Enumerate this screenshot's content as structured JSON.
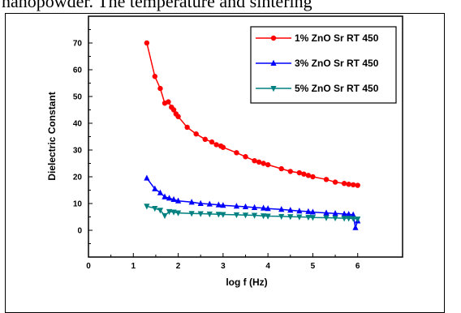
{
  "page": {
    "top_text": "nanopowder.  The    temperature and sintering"
  },
  "chart_data": {
    "type": "line",
    "xlabel": "log f (Hz)",
    "ylabel": "Dielectric Constant",
    "xlim": [
      0,
      7
    ],
    "ylim": [
      -10,
      80
    ],
    "xticks": [
      0,
      1,
      2,
      3,
      4,
      5,
      6
    ],
    "yticks": [
      0,
      10,
      20,
      30,
      40,
      50,
      60,
      70
    ],
    "legend_position": "top-right",
    "series": [
      {
        "name": "1% ZnO Sr  RT  450",
        "color": "#ff0000",
        "marker": "circle",
        "x": [
          1.3,
          1.48,
          1.6,
          1.7,
          1.78,
          1.85,
          1.9,
          1.95,
          2.0,
          2.2,
          2.4,
          2.6,
          2.75,
          2.85,
          2.95,
          3.0,
          3.3,
          3.5,
          3.7,
          3.8,
          3.9,
          4.0,
          4.3,
          4.5,
          4.7,
          4.8,
          4.9,
          5.0,
          5.3,
          5.5,
          5.7,
          5.8,
          5.9,
          6.0
        ],
        "y": [
          70,
          57.5,
          53,
          47.5,
          48,
          46,
          45,
          43.5,
          42.5,
          38.5,
          36,
          34,
          33,
          32,
          31.5,
          31,
          29,
          27.5,
          26,
          25.5,
          25,
          24.5,
          23,
          22,
          21.5,
          21,
          20.5,
          20,
          19,
          18,
          17.5,
          17.2,
          17,
          16.8
        ]
      },
      {
        "name": "3% ZnO Sr  RT  450",
        "color": "#0000ff",
        "marker": "triangle-up",
        "x": [
          1.3,
          1.48,
          1.6,
          1.7,
          1.8,
          1.9,
          2.0,
          2.3,
          2.5,
          2.7,
          2.9,
          3.0,
          3.3,
          3.5,
          3.7,
          3.9,
          4.0,
          4.3,
          4.5,
          4.7,
          4.9,
          5.0,
          5.3,
          5.5,
          5.7,
          5.8,
          5.9,
          5.95,
          6.0
        ],
        "y": [
          19.5,
          15.5,
          14,
          12.5,
          12,
          11.5,
          11,
          10.5,
          10,
          9.8,
          9.5,
          9.3,
          9,
          8.8,
          8.5,
          8.3,
          8.1,
          7.8,
          7.5,
          7.2,
          7,
          6.8,
          6.5,
          6.3,
          6.1,
          6.0,
          5.8,
          1.0,
          3.5
        ]
      },
      {
        "name": "5% ZnO Sr   RT   450",
        "color": "#008080",
        "marker": "triangle-down",
        "x": [
          1.3,
          1.48,
          1.6,
          1.7,
          1.8,
          1.9,
          2.0,
          2.3,
          2.5,
          2.7,
          2.9,
          3.0,
          3.3,
          3.5,
          3.7,
          3.9,
          4.0,
          4.3,
          4.5,
          4.7,
          4.9,
          5.0,
          5.3,
          5.5,
          5.7,
          5.8,
          5.9,
          6.0
        ],
        "y": [
          9,
          8.2,
          7.5,
          5.5,
          7,
          6.8,
          6.5,
          6.3,
          6.2,
          6.1,
          6.0,
          5.9,
          5.8,
          5.7,
          5.6,
          5.4,
          5.3,
          5.2,
          5.1,
          5.0,
          4.9,
          4.8,
          4.7,
          4.6,
          4.5,
          4.5,
          4.4,
          4.2
        ]
      }
    ]
  }
}
